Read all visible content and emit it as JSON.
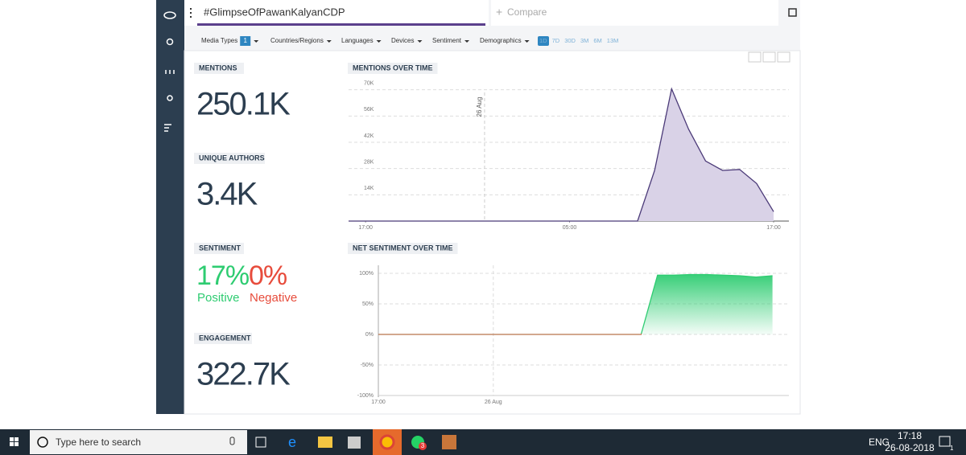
{
  "search": {
    "query": "#GlimpseOfPawanKalyanCDP",
    "compare": "Compare"
  },
  "filters": {
    "items": [
      "Media Types",
      "Countries/Regions",
      "Languages",
      "Devices",
      "Sentiment",
      "Demographics"
    ],
    "media_badge": "1",
    "ranges": [
      "1D",
      "7D",
      "30D",
      "3M",
      "6M",
      "13M"
    ]
  },
  "stats": {
    "mentions": {
      "label": "MENTIONS",
      "value": "250.1K"
    },
    "authors": {
      "label": "UNIQUE AUTHORS",
      "value": "3.4K"
    },
    "sentiment": {
      "label": "SENTIMENT",
      "positive": "17%",
      "positive_label": "Positive",
      "negative": "0%",
      "negative_label": "Negative"
    },
    "engagement": {
      "label": "ENGAGEMENT",
      "value": "322.7K"
    }
  },
  "chart_data": [
    {
      "type": "area",
      "title": "MENTIONS OVER TIME",
      "x": [
        -1,
        0,
        1,
        2,
        3,
        4,
        5,
        6,
        7,
        8,
        9,
        10,
        11,
        12,
        13,
        14,
        15,
        16,
        17,
        18,
        19,
        20,
        21,
        22,
        23,
        24
      ],
      "values": [
        0,
        0,
        0,
        0,
        0,
        0,
        0,
        0,
        0,
        0,
        0,
        0,
        0,
        0,
        0,
        0,
        0,
        0,
        27000,
        70500,
        49000,
        32000,
        27000,
        27500,
        20000,
        5000
      ],
      "color": "#4b3a78",
      "fill": "#d9d2e7",
      "xlim": [
        -1,
        24.9
      ],
      "xticks": [
        {
          "value": 0,
          "label": "17:00"
        },
        {
          "value": 12,
          "label": "05:00"
        },
        {
          "value": 24,
          "label": "17:00"
        }
      ],
      "ylim": [
        0,
        75000
      ],
      "yticks": [
        {
          "value": 14000,
          "label": "14K"
        },
        {
          "value": 28000,
          "label": "28K"
        },
        {
          "value": 42000,
          "label": "42K"
        },
        {
          "value": 56000,
          "label": "56K"
        },
        {
          "value": 70000,
          "label": "70K"
        }
      ],
      "annotation": {
        "x": 7,
        "text": "26 Aug"
      },
      "grid": true
    },
    {
      "type": "area",
      "title": "NET SENTIMENT OVER TIME",
      "x": [
        0,
        1,
        2,
        3,
        4,
        5,
        6,
        7,
        8,
        9,
        10,
        11,
        12,
        13,
        14,
        15,
        16,
        17,
        18,
        19,
        20,
        21,
        22,
        23,
        24
      ],
      "values": [
        0,
        0,
        0,
        0,
        0,
        0,
        0,
        0,
        0,
        0,
        0,
        0,
        0,
        0,
        0,
        0,
        0,
        97,
        97,
        98,
        98,
        97,
        96,
        94,
        96
      ],
      "color": "#2ecc71",
      "neutral_color": "#b8734a",
      "xlim": [
        0,
        25
      ],
      "xticks": [
        {
          "value": 0,
          "label": "17:00"
        },
        {
          "value": 7,
          "label": "26 Aug"
        }
      ],
      "ylim": [
        -100,
        100
      ],
      "yticks": [
        {
          "value": -100,
          "label": "-100%"
        },
        {
          "value": -50,
          "label": "-50%"
        },
        {
          "value": 0,
          "label": "0%"
        },
        {
          "value": 50,
          "label": "50%"
        },
        {
          "value": 100,
          "label": "100%"
        }
      ],
      "grid": true
    }
  ],
  "taskbar": {
    "search": "Type here to search",
    "badge": "3",
    "lang": "ENG",
    "time": "17:18",
    "date": "26-08-2018",
    "notifications": "1"
  }
}
